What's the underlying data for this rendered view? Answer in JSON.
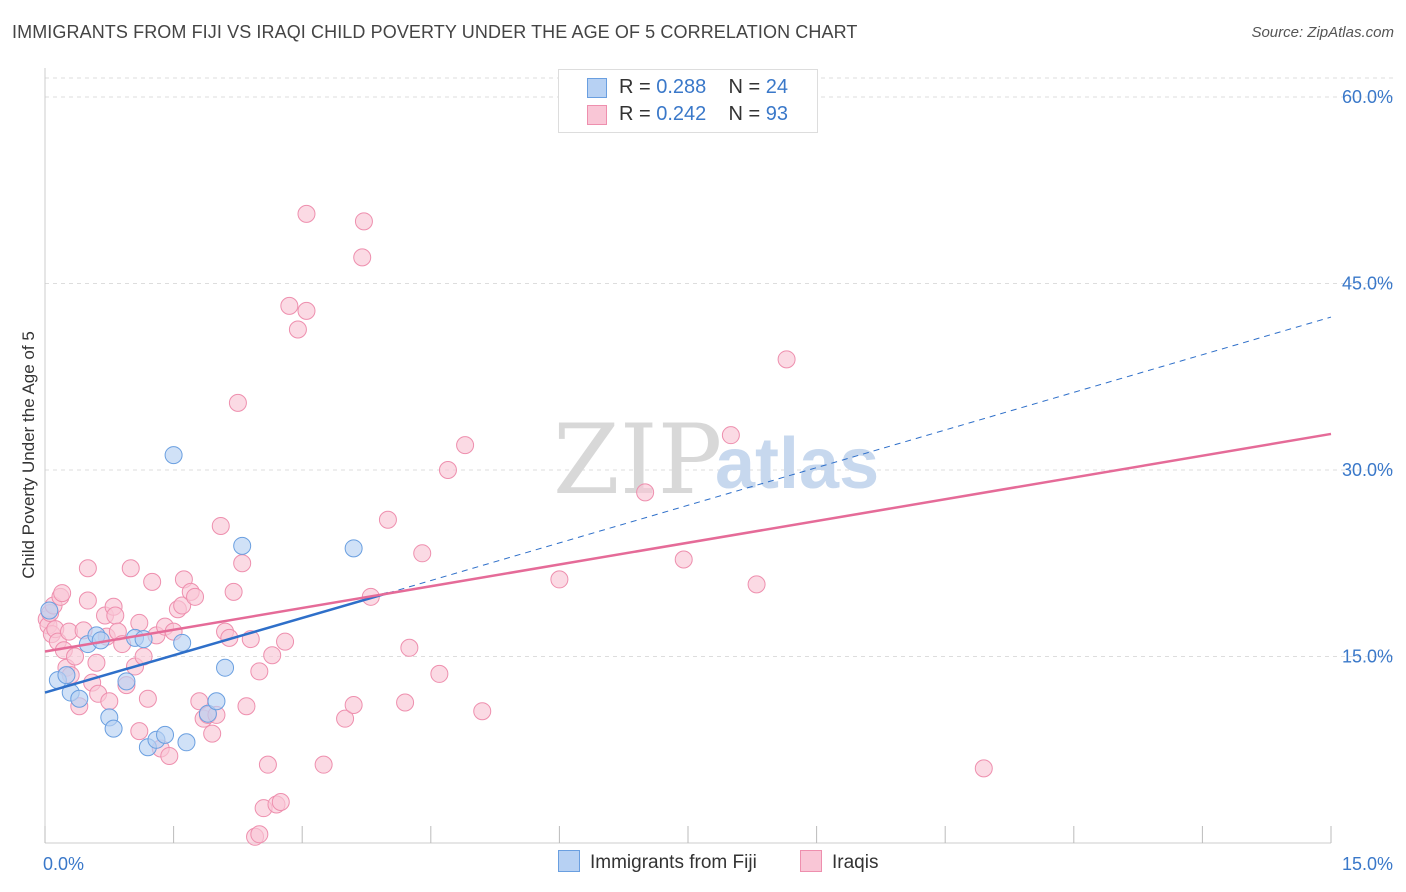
{
  "title": "IMMIGRANTS FROM FIJI VS IRAQI CHILD POVERTY UNDER THE AGE OF 5 CORRELATION CHART",
  "source": "Source: ZipAtlas.com",
  "watermark": {
    "zip": "ZIP",
    "atlas": "atlas"
  },
  "legend": {
    "rows": [
      {
        "r_label": "R = ",
        "r_value": "0.288",
        "n_label": "N = ",
        "n_value": "24"
      },
      {
        "r_label": "R = ",
        "r_value": "0.242",
        "n_label": "N = ",
        "n_value": "93"
      }
    ]
  },
  "bottom_legend": {
    "fiji": "Immigrants from Fiji",
    "iraqis": "Iraqis"
  },
  "colors": {
    "fiji_fill": "#b7d1f3",
    "fiji_stroke": "#6a9fe0",
    "fiji_line": "#2e6fc9",
    "iraqi_fill": "#f9c6d6",
    "iraqi_stroke": "#ee8fae",
    "iraqi_line": "#e56b98",
    "axis_text": "#3a78c9",
    "grid": "#dddddd"
  },
  "chart_data": {
    "type": "scatter",
    "ylabel": "Child Poverty Under the Age of 5",
    "xlabel": "",
    "xlim": [
      0,
      15
    ],
    "ylim": [
      0,
      60
    ],
    "x_tick_labels": [
      "0.0%",
      "15.0%"
    ],
    "y_ticks": [
      15,
      30,
      45,
      60
    ],
    "y_tick_labels": [
      "15.0%",
      "30.0%",
      "45.0%",
      "60.0%"
    ],
    "grid": true,
    "legend_position": "top-center",
    "series": [
      {
        "name": "Immigrants from Fiji",
        "R": 0.288,
        "N": 24,
        "trend": {
          "x": [
            0,
            4.0
          ],
          "y": [
            12.1,
            20.1
          ],
          "extended_x": [
            4.0,
            15.0
          ],
          "extended_y": [
            20.1,
            42.3
          ]
        },
        "points": [
          [
            0.05,
            18.7
          ],
          [
            0.15,
            13.1
          ],
          [
            0.3,
            12.1
          ],
          [
            0.4,
            11.6
          ],
          [
            0.5,
            16.0
          ],
          [
            0.6,
            16.7
          ],
          [
            0.65,
            16.3
          ],
          [
            0.75,
            10.1
          ],
          [
            0.8,
            9.2
          ],
          [
            0.95,
            13.0
          ],
          [
            1.05,
            16.5
          ],
          [
            1.2,
            7.7
          ],
          [
            1.3,
            8.3
          ],
          [
            1.4,
            8.7
          ],
          [
            1.5,
            31.2
          ],
          [
            1.6,
            16.1
          ],
          [
            1.65,
            8.1
          ],
          [
            1.9,
            10.4
          ],
          [
            2.0,
            11.4
          ],
          [
            2.1,
            14.1
          ],
          [
            2.3,
            23.9
          ],
          [
            3.6,
            23.7
          ],
          [
            0.25,
            13.5
          ],
          [
            1.15,
            16.4
          ]
        ]
      },
      {
        "name": "Iraqis",
        "R": 0.242,
        "N": 93,
        "trend": {
          "x": [
            0,
            15.0
          ],
          "y": [
            15.4,
            32.9
          ]
        },
        "points": [
          [
            0.02,
            18.0
          ],
          [
            0.04,
            17.5
          ],
          [
            0.06,
            18.5
          ],
          [
            0.08,
            16.8
          ],
          [
            0.1,
            19.1
          ],
          [
            0.12,
            17.2
          ],
          [
            0.15,
            16.2
          ],
          [
            0.18,
            19.8
          ],
          [
            0.2,
            20.1
          ],
          [
            0.22,
            15.5
          ],
          [
            0.25,
            14.1
          ],
          [
            0.28,
            17.0
          ],
          [
            0.3,
            13.5
          ],
          [
            0.35,
            15.0
          ],
          [
            0.4,
            11.0
          ],
          [
            0.45,
            17.1
          ],
          [
            0.5,
            19.5
          ],
          [
            0.5,
            22.1
          ],
          [
            0.55,
            12.9
          ],
          [
            0.6,
            14.5
          ],
          [
            0.62,
            12.0
          ],
          [
            0.7,
            18.3
          ],
          [
            0.72,
            16.6
          ],
          [
            0.75,
            11.4
          ],
          [
            0.8,
            19.0
          ],
          [
            0.82,
            18.3
          ],
          [
            0.85,
            17.0
          ],
          [
            0.9,
            16.0
          ],
          [
            0.95,
            12.7
          ],
          [
            1.0,
            22.1
          ],
          [
            1.05,
            14.2
          ],
          [
            1.1,
            9.0
          ],
          [
            1.1,
            17.7
          ],
          [
            1.15,
            15.0
          ],
          [
            1.2,
            11.6
          ],
          [
            1.25,
            21.0
          ],
          [
            1.3,
            16.7
          ],
          [
            1.35,
            7.6
          ],
          [
            1.4,
            17.4
          ],
          [
            1.45,
            7.0
          ],
          [
            1.5,
            17.0
          ],
          [
            1.55,
            18.8
          ],
          [
            1.6,
            19.1
          ],
          [
            1.62,
            21.2
          ],
          [
            1.7,
            20.2
          ],
          [
            1.75,
            19.8
          ],
          [
            1.8,
            11.4
          ],
          [
            1.85,
            10.0
          ],
          [
            1.9,
            10.3
          ],
          [
            1.95,
            8.8
          ],
          [
            2.0,
            10.3
          ],
          [
            2.05,
            25.5
          ],
          [
            2.1,
            17.0
          ],
          [
            2.15,
            16.5
          ],
          [
            2.2,
            20.2
          ],
          [
            2.25,
            35.4
          ],
          [
            2.3,
            22.5
          ],
          [
            2.35,
            11.0
          ],
          [
            2.4,
            16.4
          ],
          [
            2.45,
            0.5
          ],
          [
            2.5,
            0.7
          ],
          [
            2.5,
            13.8
          ],
          [
            2.55,
            2.8
          ],
          [
            2.6,
            6.3
          ],
          [
            2.65,
            15.1
          ],
          [
            2.7,
            3.1
          ],
          [
            2.8,
            16.2
          ],
          [
            2.75,
            3.3
          ],
          [
            2.85,
            43.2
          ],
          [
            2.95,
            41.3
          ],
          [
            3.05,
            42.8
          ],
          [
            3.05,
            50.6
          ],
          [
            3.25,
            6.3
          ],
          [
            3.5,
            10.0
          ],
          [
            3.6,
            11.1
          ],
          [
            3.7,
            47.1
          ],
          [
            3.72,
            50.0
          ],
          [
            3.8,
            19.8
          ],
          [
            4.0,
            26.0
          ],
          [
            4.2,
            11.3
          ],
          [
            4.25,
            15.7
          ],
          [
            4.4,
            23.3
          ],
          [
            4.6,
            13.6
          ],
          [
            4.7,
            30.0
          ],
          [
            4.9,
            32.0
          ],
          [
            5.1,
            10.6
          ],
          [
            6.0,
            21.2
          ],
          [
            7.0,
            28.2
          ],
          [
            7.45,
            22.8
          ],
          [
            8.0,
            32.8
          ],
          [
            8.3,
            20.8
          ],
          [
            8.65,
            38.9
          ],
          [
            10.95,
            6.0
          ]
        ]
      }
    ]
  }
}
